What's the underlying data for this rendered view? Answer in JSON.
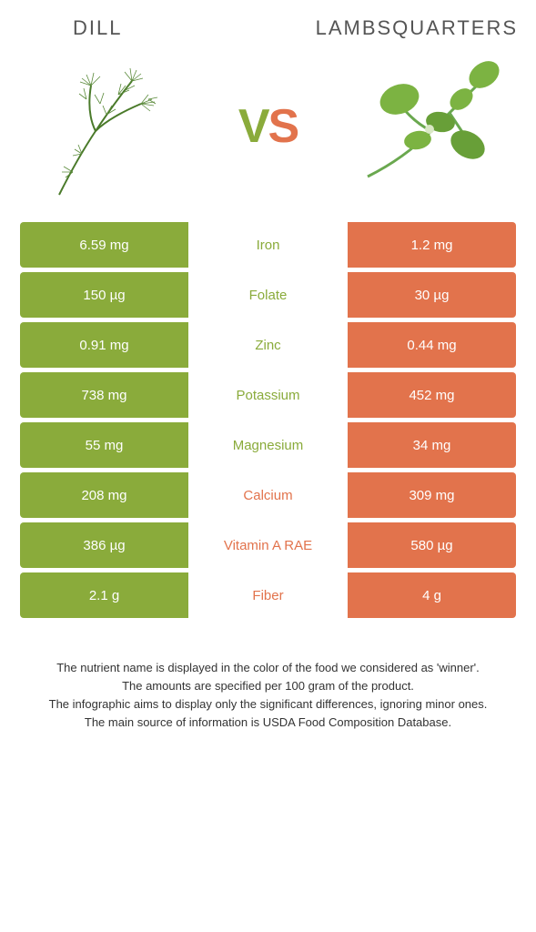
{
  "header": {
    "left": "DILL",
    "right": "LAMBSQUARTERS"
  },
  "vs": {
    "v": "V",
    "s": "S"
  },
  "colors": {
    "green": "#8aab3b",
    "orange": "#e2734c",
    "text": "#333333"
  },
  "table": {
    "left_color": "#8aab3b",
    "right_color": "#e2734c",
    "rows": [
      {
        "left": "6.59 mg",
        "mid": "Iron",
        "right": "1.2 mg",
        "winner": "left"
      },
      {
        "left": "150 µg",
        "mid": "Folate",
        "right": "30 µg",
        "winner": "left"
      },
      {
        "left": "0.91 mg",
        "mid": "Zinc",
        "right": "0.44 mg",
        "winner": "left"
      },
      {
        "left": "738 mg",
        "mid": "Potassium",
        "right": "452 mg",
        "winner": "left"
      },
      {
        "left": "55 mg",
        "mid": "Magnesium",
        "right": "34 mg",
        "winner": "left"
      },
      {
        "left": "208 mg",
        "mid": "Calcium",
        "right": "309 mg",
        "winner": "right"
      },
      {
        "left": "386 µg",
        "mid": "Vitamin A RAE",
        "right": "580 µg",
        "winner": "right"
      },
      {
        "left": "2.1 g",
        "mid": "Fiber",
        "right": "4 g",
        "winner": "right"
      }
    ]
  },
  "footer": {
    "l1": "The nutrient name is displayed in the color of the food we considered as 'winner'.",
    "l2": "The amounts are specified per 100 gram of the product.",
    "l3": "The infographic aims to display only the significant differences, ignoring minor ones.",
    "l4": "The main source of information is USDA Food Composition Database."
  }
}
